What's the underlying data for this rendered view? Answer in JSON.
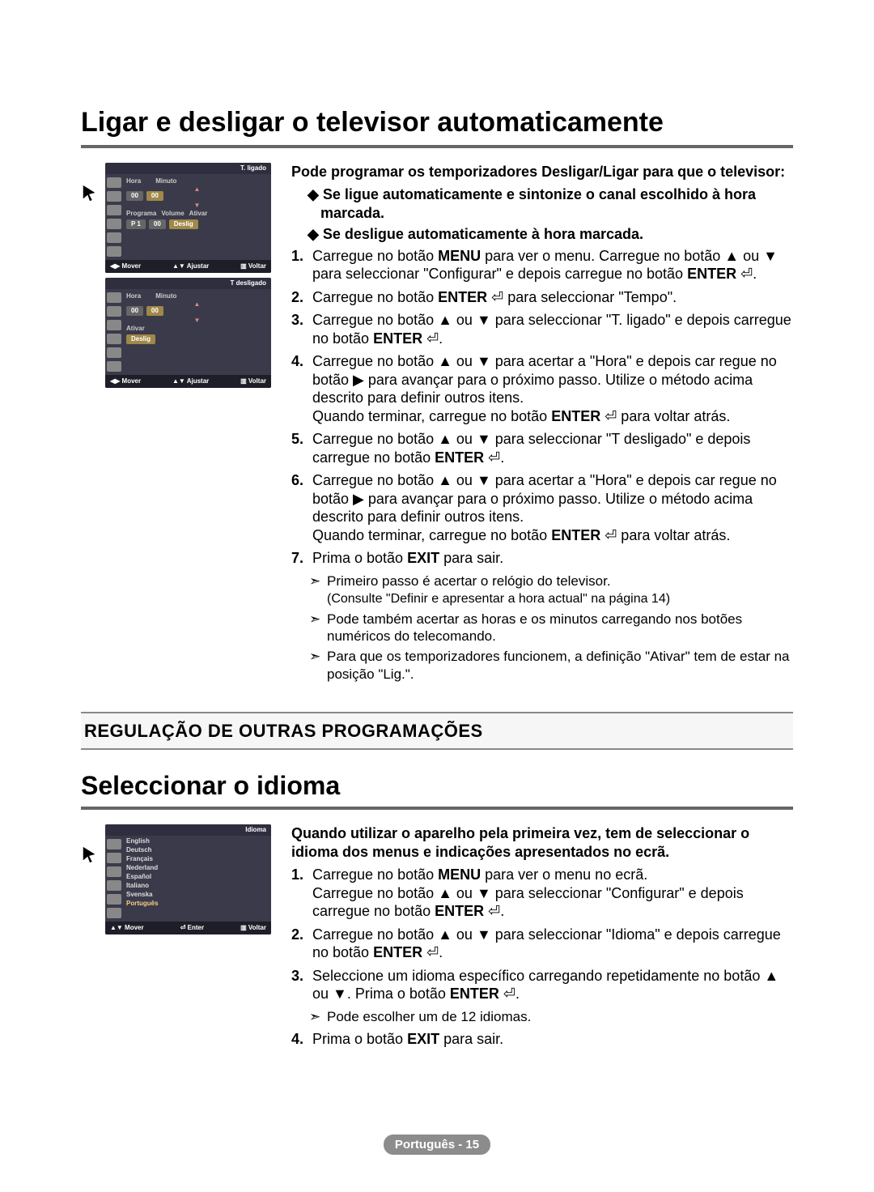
{
  "page": {
    "number_label": "Português - 15"
  },
  "section1": {
    "title": "Ligar e desligar o televisor automaticamente",
    "intro": "Pode programar os temporizadores Desligar/Ligar para que o televisor:",
    "sub_bullets": [
      "Se ligue automaticamente e sintonize o canal escolhido à hora marcada.",
      "Se desligue automaticamente à hora marcada."
    ],
    "steps": [
      {
        "n": "1.",
        "html": "Carregue no botão <b>MENU</b> para ver o menu. Carregue no botão ▲ ou ▼ para seleccionar \"Configurar\" e depois carregue no botão <b>ENTER</b> ⏎."
      },
      {
        "n": "2.",
        "html": "Carregue no botão <b>ENTER</b> ⏎ para seleccionar \"Tempo\"."
      },
      {
        "n": "3.",
        "html": "Carregue no botão ▲ ou ▼ para seleccionar \"T. ligado\" e depois carregue no botão <b>ENTER</b> ⏎."
      },
      {
        "n": "4.",
        "html": "Carregue no botão ▲ ou ▼ para acertar a \"Hora\" e depois car regue no botão ▶ para avançar para o próximo passo. Utilize o método acima descrito para definir outros itens.<br>Quando terminar, carregue no botão <b>ENTER</b> ⏎ para voltar atrás."
      },
      {
        "n": "5.",
        "html": "Carregue no botão ▲ ou ▼ para seleccionar \"T desligado\" e depois carregue no botão <b>ENTER</b> ⏎."
      },
      {
        "n": "6.",
        "html": "Carregue no botão ▲ ou ▼ para acertar a \"Hora\" e depois car regue no botão ▶ para avançar para o próximo passo. Utilize o método acima descrito para definir outros itens.<br>Quando terminar, carregue no botão <b>ENTER</b> ⏎ para voltar atrás."
      },
      {
        "n": "7.",
        "html": "Prima o botão <b>EXIT</b> para sair."
      }
    ],
    "notes": [
      "Primeiro passo é acertar o relógio do televisor.<br><span class=\"sub-small\">(Consulte \"Definir e apresentar a hora actual\" na página 14)</span>",
      "Pode também acertar as horas e os minutos carregando nos botões numéricos do telecomando.",
      "Para que os temporizadores funcionem, a definição \"Ativar\" tem de estar na posição \"Lig.\"."
    ]
  },
  "osd1": {
    "title": "T. ligado",
    "h": "Hora",
    "m": "Minuto",
    "prog": "Programa",
    "vol": "Volume",
    "act": "Ativar",
    "h_val": "00",
    "m_val": "00",
    "p_val": "P   1",
    "v_val": "00",
    "a_val": "Deslig",
    "f1": "◀▶ Mover",
    "f2": "▲▼ Ajustar",
    "f3": "▥ Voltar"
  },
  "osd2": {
    "title": "T desligado",
    "h": "Hora",
    "m": "Minuto",
    "act": "Ativar",
    "h_val": "00",
    "m_val": "00",
    "a_val": "Deslig",
    "f1": "◀▶ Mover",
    "f2": "▲▼ Ajustar",
    "f3": "▥ Voltar"
  },
  "band": {
    "title": "REGULAÇÃO DE OUTRAS PROGRAMAÇÕES"
  },
  "section2": {
    "title": "Seleccionar o idioma",
    "intro": "Quando utilizar o aparelho pela primeira vez, tem de seleccionar o idioma dos menus e indicações apresentados no ecrã.",
    "steps": [
      {
        "n": "1.",
        "html": "Carregue no botão <b>MENU</b> para ver o menu no ecrã.<br>Carregue no botão ▲ ou ▼ para seleccionar \"Configurar\" e depois carregue no botão <b>ENTER</b> ⏎."
      },
      {
        "n": "2.",
        "html": "Carregue no botão ▲ ou ▼ para seleccionar \"Idioma\" e depois carregue no botão <b>ENTER</b> ⏎."
      },
      {
        "n": "3.",
        "html": "Seleccione um idioma específico carregando repetidamente no botão ▲ ou ▼. Prima o botão <b>ENTER</b> ⏎."
      }
    ],
    "notes": [
      "Pode escolher um de 12 idiomas."
    ],
    "step4": {
      "n": "4.",
      "html": "Prima o botão <b>EXIT</b> para sair."
    }
  },
  "osd3": {
    "title": "Idioma",
    "langs": [
      "English",
      "Deutsch",
      "Français",
      "Nederland",
      "Español",
      "Italiano",
      "Svenska",
      "Português"
    ],
    "selected": "Português",
    "f1": "▲▼ Mover",
    "f2": "⏎ Enter",
    "f3": "▥ Voltar"
  },
  "colors": {
    "heading_underline": "#666666",
    "osd_bg": "#3a3a4a",
    "osd_title_bg": "#2e2e3e",
    "osd_footer_bg": "#1e1e28",
    "pill_amber": "#a08848",
    "pill_grey": "#666666",
    "band_bg": "#f6f6f6",
    "page_pill": "#8c8c8c"
  }
}
